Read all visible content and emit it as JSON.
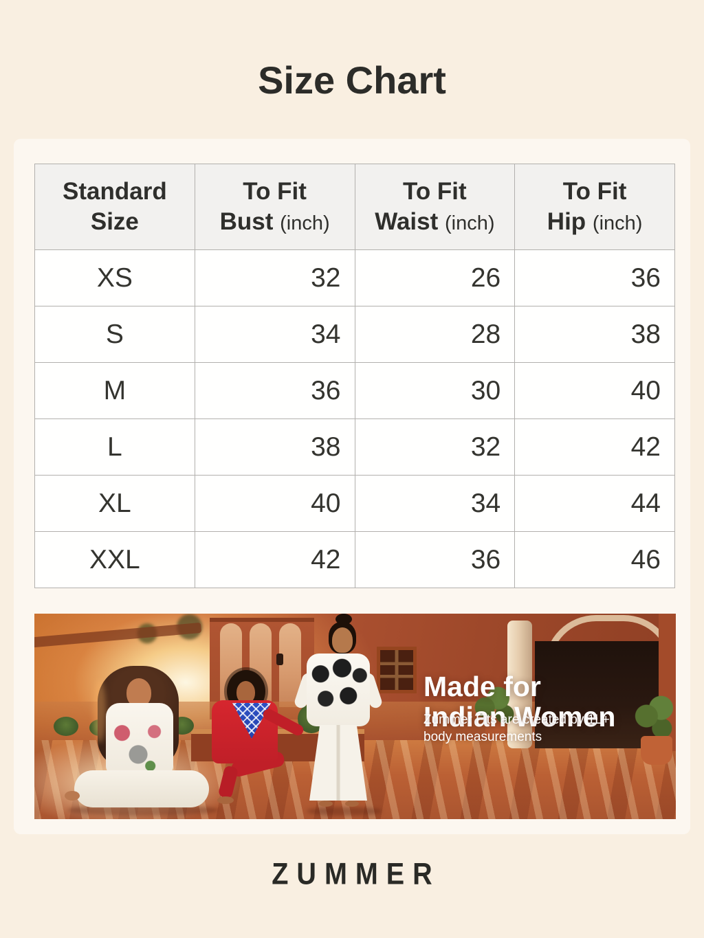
{
  "page": {
    "title": "Size Chart",
    "brand": "ZUMMER",
    "background_color": "#F9EFE1",
    "accent_terracotta": "#AB5030"
  },
  "table": {
    "headers": [
      {
        "line1": "Standard",
        "line2": "Size",
        "unit": ""
      },
      {
        "line1": "To Fit",
        "line2": "Bust",
        "unit": "(inch)"
      },
      {
        "line1": "To Fit",
        "line2": "Waist",
        "unit": "(inch)"
      },
      {
        "line1": "To Fit",
        "line2": "Hip",
        "unit": "(inch)"
      }
    ],
    "rows": [
      {
        "size": "XS",
        "bust": "32",
        "waist": "26",
        "hip": "36"
      },
      {
        "size": "S",
        "bust": "34",
        "waist": "28",
        "hip": "38"
      },
      {
        "size": "M",
        "bust": "36",
        "waist": "30",
        "hip": "40"
      },
      {
        "size": "L",
        "bust": "38",
        "waist": "32",
        "hip": "42"
      },
      {
        "size": "XL",
        "bust": "40",
        "waist": "34",
        "hip": "44"
      },
      {
        "size": "XXL",
        "bust": "42",
        "waist": "36",
        "hip": "46"
      }
    ]
  },
  "banner": {
    "heading_line1": "Made for",
    "heading_line2": "Indian Women",
    "subtext_line1": "Zummer Fits are created by 1L+",
    "subtext_line2": "body measurements",
    "text_color": "#FFFFFF"
  },
  "chart_data": {
    "type": "table",
    "title": "Size Chart",
    "columns": [
      "Standard Size",
      "To Fit Bust (inch)",
      "To Fit Waist (inch)",
      "To Fit Hip (inch)"
    ],
    "rows": [
      [
        "XS",
        32,
        26,
        36
      ],
      [
        "S",
        34,
        28,
        38
      ],
      [
        "M",
        36,
        30,
        40
      ],
      [
        "L",
        38,
        32,
        42
      ],
      [
        "XL",
        40,
        34,
        44
      ],
      [
        "XXL",
        42,
        36,
        46
      ]
    ]
  }
}
